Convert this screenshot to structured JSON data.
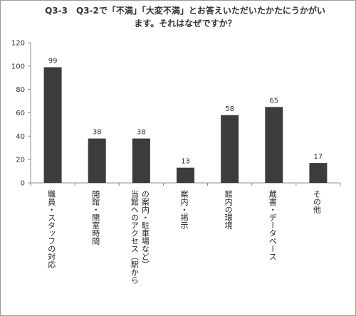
{
  "title": "Q3-3　Q3-2で「不満」「大変不満」とお答えいただいたかたにうかがいます。それはなぜですか？",
  "chart_data": {
    "type": "bar",
    "categories": [
      "職員・スタッフの対応",
      "開館・開室時間",
      "当館へのアクセス（駅からの案内・駐車場など）",
      "案内・掲示",
      "館内の環境",
      "蔵書・データベース",
      "その他"
    ],
    "category_lines": [
      [
        "職員・スタッフの対応"
      ],
      [
        "開館・開室時間"
      ],
      [
        "当館へのアクセス（駅から",
        "の案内・駐車場など）"
      ],
      [
        "案内・掲示"
      ],
      [
        "館内の環境"
      ],
      [
        "蔵書・データベース"
      ],
      [
        "その他"
      ]
    ],
    "values": [
      99,
      38,
      38,
      13,
      58,
      65,
      17
    ],
    "ylim": [
      0,
      120
    ],
    "yticks": [
      0,
      20,
      40,
      60,
      80,
      100,
      120
    ],
    "grid": false,
    "legend": "none",
    "bar_color": "#3c3c3c"
  }
}
